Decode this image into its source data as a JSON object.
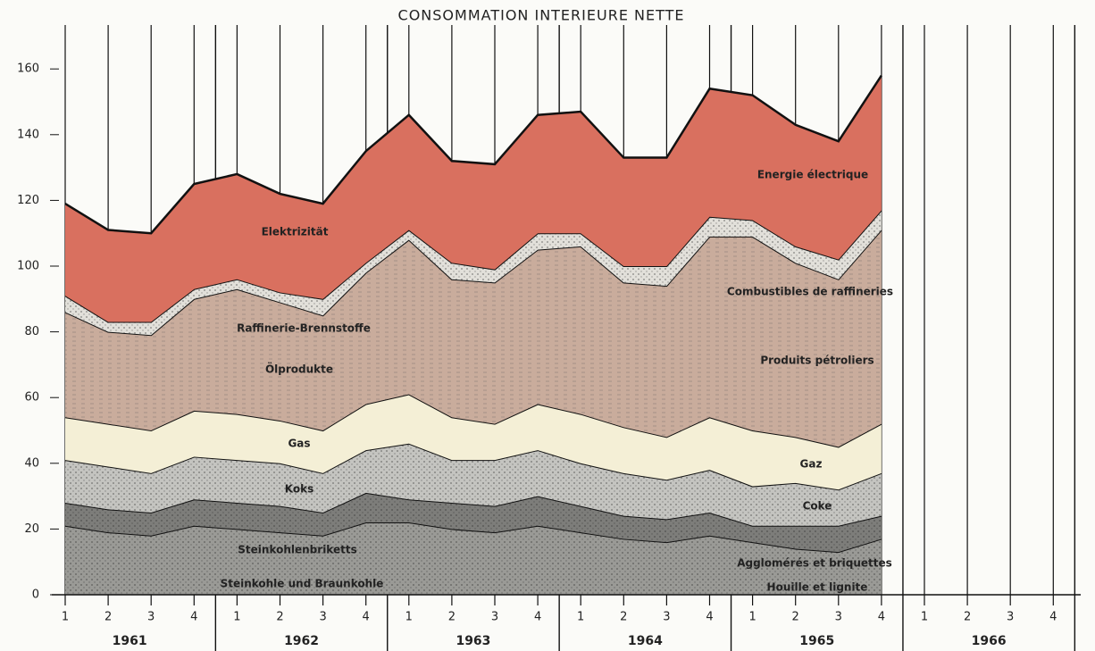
{
  "chart_data": {
    "type": "stacked_area",
    "title": "CONSOMMATION INTERIEURE NETTE",
    "categories": [
      "1",
      "2",
      "3",
      "4",
      "1",
      "2",
      "3",
      "4",
      "1",
      "2",
      "3",
      "4",
      "1",
      "2",
      "3",
      "4",
      "1",
      "2",
      "3",
      "4",
      "1",
      "2",
      "3",
      "4"
    ],
    "years": [
      "1961",
      "1962",
      "1963",
      "1964",
      "1965",
      "1966"
    ],
    "ylim": [
      0,
      170
    ],
    "yticks": [
      0,
      20,
      40,
      60,
      80,
      100,
      120,
      140,
      160
    ],
    "series": [
      {
        "labels": [
          "Steinkohle und Braunkohle",
          "Houille et lignite"
        ],
        "color": "#9a9a96",
        "values": [
          21,
          19,
          18,
          21,
          20,
          19,
          18,
          22,
          22,
          20,
          19,
          21,
          19,
          17,
          16,
          18,
          16,
          14,
          13,
          17,
          null,
          null,
          null,
          null
        ]
      },
      {
        "labels": [
          "Steinkohlenbriketts",
          "Agglomérés et briquettes"
        ],
        "color": "#7d7d7a",
        "values": [
          7,
          7,
          7,
          8,
          8,
          8,
          7,
          9,
          7,
          8,
          8,
          9,
          8,
          7,
          7,
          7,
          5,
          7,
          8,
          7,
          null,
          null,
          null,
          null
        ]
      },
      {
        "labels": [
          "Koks",
          "Coke"
        ],
        "color": "#c4c4c0",
        "values": [
          13,
          13,
          12,
          13,
          13,
          13,
          12,
          13,
          17,
          13,
          14,
          14,
          13,
          13,
          12,
          13,
          12,
          13,
          11,
          13,
          null,
          null,
          null,
          null
        ]
      },
      {
        "labels": [
          "Gas",
          "Gaz"
        ],
        "color": "#f4efd6",
        "values": [
          13,
          13,
          13,
          14,
          14,
          13,
          13,
          14,
          15,
          13,
          11,
          14,
          15,
          14,
          13,
          16,
          17,
          14,
          13,
          15,
          null,
          null,
          null,
          null
        ]
      },
      {
        "labels": [
          "Ölprodukte",
          "Produits pétroliers"
        ],
        "color": "#c9ac9c",
        "values": [
          32,
          28,
          29,
          34,
          38,
          36,
          35,
          40,
          47,
          42,
          43,
          47,
          51,
          44,
          46,
          55,
          59,
          53,
          51,
          59,
          null,
          null,
          null,
          null
        ]
      },
      {
        "labels": [
          "Raffinerie-Brennstoffe",
          "Combustibles de raffineries"
        ],
        "color": "#e2e0da",
        "values": [
          5,
          3,
          4,
          3,
          3,
          3,
          5,
          3,
          3,
          5,
          4,
          5,
          4,
          5,
          6,
          6,
          5,
          5,
          6,
          6,
          null,
          null,
          null,
          null
        ]
      },
      {
        "labels": [
          "Elektrizität",
          "Energie électrique"
        ],
        "color": "#d9705f",
        "values": [
          28,
          28,
          27,
          32,
          32,
          30,
          29,
          34,
          35,
          31,
          32,
          36,
          37,
          33,
          33,
          39,
          38,
          37,
          36,
          41,
          null,
          null,
          null,
          null
        ]
      }
    ]
  }
}
